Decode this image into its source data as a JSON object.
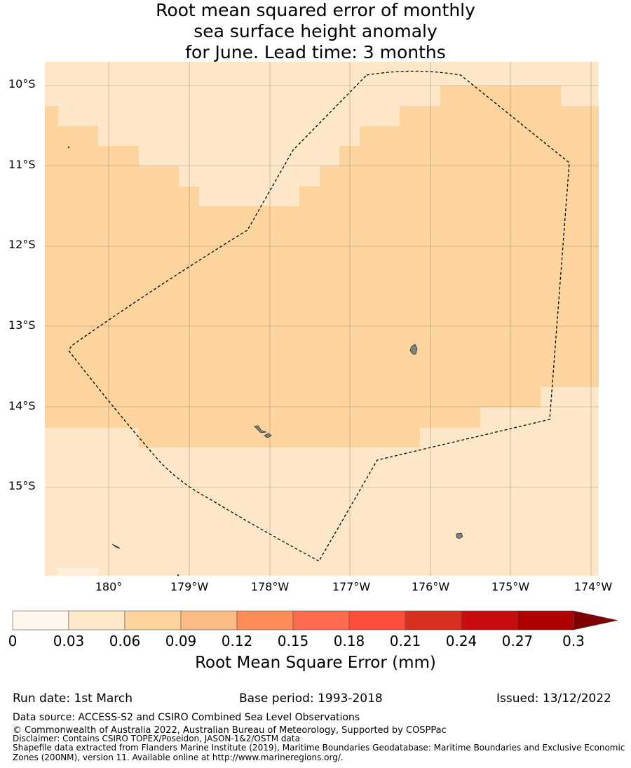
{
  "title": {
    "line1": "Root mean squared error of monthly",
    "line2": "sea surface height anomaly",
    "line3": "for June. Lead time: 3 months"
  },
  "map": {
    "lat_labels": [
      "10°S",
      "11°S",
      "12°S",
      "13°S",
      "14°S",
      "15°S"
    ],
    "lon_labels": [
      "180°",
      "179°W",
      "178°W",
      "177°W",
      "176°W",
      "175°W",
      "174°W"
    ],
    "colors": {
      "level_0_03": "#fee7c8",
      "level_0_06": "#fdd49e",
      "land": "#808080",
      "boundary": "#000000"
    },
    "rmse_band": "0.06 - 0.09 mm inside central region, 0.03 - 0.06 mm around the edges"
  },
  "colorbar": {
    "ticks": [
      "0",
      "0.03",
      "0.06",
      "0.09",
      "0.12",
      "0.15",
      "0.18",
      "0.21",
      "0.24",
      "0.27",
      "0.3"
    ],
    "colors": [
      "#fff7ec",
      "#fee8c8",
      "#fdd49e",
      "#fdbb84",
      "#fc8d59",
      "#fd6a50",
      "#fc4e3a",
      "#d7301f",
      "#c80c12",
      "#b00000",
      "#7f0000"
    ],
    "label": "Root Mean Square Error (mm)"
  },
  "footer": {
    "run_date": "Run date: 1st March",
    "base_period": "Base period: 1993-2018",
    "issued": "Issued: 13/12/2022",
    "data_source": "Data source: ACCESS-S2 and CSIRO Combined Sea Level Observations",
    "copyright": "© Commonwealth of Australia 2022, Australian Bureau of Meteorology, Supported by COSPPac",
    "disclaimer": "Disclaimer: Contains CSIRO TOPEX/Poseidon, JASON-1&2/OSTM data",
    "shapefile_1": "Shapefile data extracted from Flanders Marine Institute (2019), Maritime Boundaries Geodatabase: Maritime Boundaries and Exclusive Economic",
    "shapefile_2": "Zones (200NM), version 11. Available online at http://www.marineregions.org/."
  }
}
